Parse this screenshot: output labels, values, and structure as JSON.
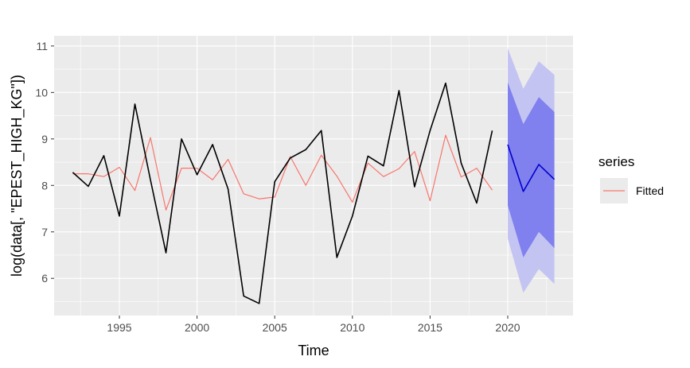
{
  "chart_data": {
    "type": "line",
    "title": "",
    "xlabel": "Time",
    "ylabel": "log(data[, \"EPEST_HIGH_KG\"])",
    "xlim": [
      1990.8,
      2024.2
    ],
    "ylim": [
      5.2,
      11.22
    ],
    "x_ticks": [
      1995,
      2000,
      2005,
      2010,
      2015,
      2020
    ],
    "x_tick_labels": [
      "1995",
      "2000",
      "2005",
      "2010",
      "2015",
      "2020"
    ],
    "y_ticks": [
      6,
      7,
      8,
      9,
      10,
      11
    ],
    "y_tick_labels": [
      "6",
      "7",
      "8",
      "9",
      "10",
      "11"
    ],
    "grid": true,
    "legend": {
      "title": "series",
      "position": "right",
      "entries": [
        "Fitted"
      ]
    },
    "series": [
      {
        "name": "",
        "role": "observed",
        "color": "#000000",
        "x": [
          1992,
          1993,
          1994,
          1995,
          1996,
          1997,
          1998,
          1999,
          2000,
          2001,
          2002,
          2003,
          2004,
          2005,
          2006,
          2007,
          2008,
          2009,
          2010,
          2011,
          2012,
          2013,
          2014,
          2015,
          2016,
          2017,
          2018,
          2019
        ],
        "values": [
          8.28,
          7.98,
          8.64,
          7.34,
          9.75,
          8.12,
          6.55,
          9.0,
          8.23,
          8.88,
          7.92,
          5.62,
          5.46,
          8.08,
          8.59,
          8.77,
          9.18,
          6.45,
          7.34,
          8.63,
          8.42,
          10.04,
          7.97,
          9.18,
          10.2,
          8.48,
          7.62,
          9.18
        ]
      },
      {
        "name": "Fitted",
        "role": "fitted",
        "color": "#f8766d",
        "x": [
          1992,
          1993,
          1994,
          1995,
          1996,
          1997,
          1998,
          1999,
          2000,
          2001,
          2002,
          2003,
          2004,
          2005,
          2006,
          2007,
          2008,
          2009,
          2010,
          2011,
          2012,
          2013,
          2014,
          2015,
          2016,
          2017,
          2018,
          2019
        ],
        "values": [
          8.25,
          8.25,
          8.19,
          8.39,
          7.89,
          9.03,
          7.47,
          8.37,
          8.37,
          8.12,
          8.56,
          7.82,
          7.71,
          7.75,
          8.62,
          8.0,
          8.65,
          8.2,
          7.64,
          8.48,
          8.19,
          8.36,
          8.73,
          7.67,
          9.08,
          8.18,
          8.37,
          7.9
        ]
      },
      {
        "name": "",
        "role": "forecast",
        "color": "#0000cc",
        "x": [
          2020,
          2021,
          2022,
          2023
        ],
        "values": [
          8.88,
          7.87,
          8.45,
          8.13
        ],
        "interval_80": {
          "color": "#8080ee",
          "lower": [
            7.57,
            6.45,
            7.0,
            6.65
          ],
          "upper": [
            10.22,
            9.32,
            9.9,
            9.58
          ]
        },
        "interval_95": {
          "color": "#c4c4f2",
          "lower": [
            6.85,
            5.69,
            6.2,
            5.88
          ],
          "upper": [
            10.95,
            10.08,
            10.67,
            10.38
          ]
        }
      }
    ]
  }
}
